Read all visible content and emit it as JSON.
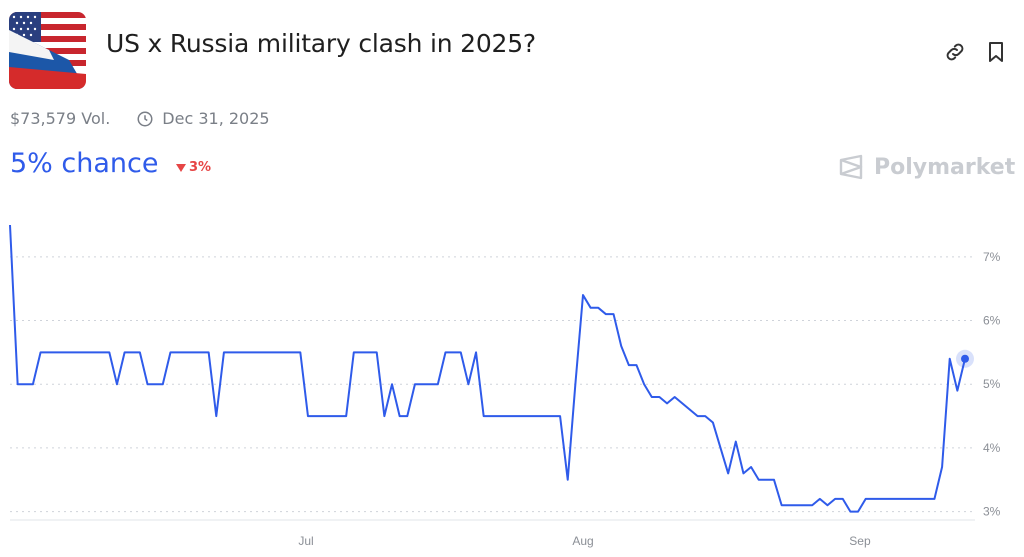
{
  "header": {
    "title": "US x Russia military clash in 2025?",
    "volume": "$73,579 Vol.",
    "end_date": "Dec 31, 2025",
    "chance": "5% chance",
    "delta": "3%",
    "brand": "Polymarket",
    "icons": [
      "link-icon",
      "bookmark-icon",
      "clock-icon",
      "polymarket-logo-icon"
    ]
  },
  "colors": {
    "line": "#2f5bea",
    "delta": "#e64545",
    "grid": "#cfd3da"
  },
  "chart_data": {
    "type": "line",
    "title": "",
    "xlabel": "",
    "ylabel": "",
    "x_ticks": [
      "Jul",
      "Aug",
      "Sep"
    ],
    "y_ticks": [
      "3%",
      "4%",
      "5%",
      "6%",
      "7%"
    ],
    "ylim": [
      2.9,
      7.5
    ],
    "grid": true,
    "series": [
      {
        "values": [
          7.5,
          5.0,
          5.0,
          5.0,
          5.5,
          5.5,
          5.5,
          5.5,
          5.5,
          5.5,
          5.5,
          5.5,
          5.5,
          5.5,
          5.0,
          5.5,
          5.5,
          5.5,
          5.0,
          5.0,
          5.0,
          5.5,
          5.5,
          5.5,
          5.5,
          5.5,
          5.5,
          4.5,
          5.5,
          5.5,
          5.5,
          5.5,
          5.5,
          5.5,
          5.5,
          5.5,
          5.5,
          5.5,
          5.5,
          4.5,
          4.5,
          4.5,
          4.5,
          4.5,
          4.5,
          5.5,
          5.5,
          5.5,
          5.5,
          4.5,
          5.0,
          4.5,
          4.5,
          5.0,
          5.0,
          5.0,
          5.0,
          5.5,
          5.5,
          5.5,
          5.0,
          5.5,
          4.5,
          4.5,
          4.5,
          4.5,
          4.5,
          4.5,
          4.5,
          4.5,
          4.5,
          4.5,
          4.5,
          3.5,
          5.0,
          6.4,
          6.2,
          6.2,
          6.1,
          6.1,
          5.6,
          5.3,
          5.3,
          5.0,
          4.8,
          4.8,
          4.7,
          4.8,
          4.7,
          4.6,
          4.5,
          4.5,
          4.4,
          4.0,
          3.6,
          4.1,
          3.6,
          3.7,
          3.5,
          3.5,
          3.5,
          3.1,
          3.1,
          3.1,
          3.1,
          3.1,
          3.2,
          3.1,
          3.2,
          3.2,
          3.0,
          3.0,
          3.2,
          3.2,
          3.2,
          3.2,
          3.2,
          3.2,
          3.2,
          3.2,
          3.2,
          3.2,
          3.7,
          5.4,
          4.9,
          5.4
        ]
      }
    ]
  }
}
